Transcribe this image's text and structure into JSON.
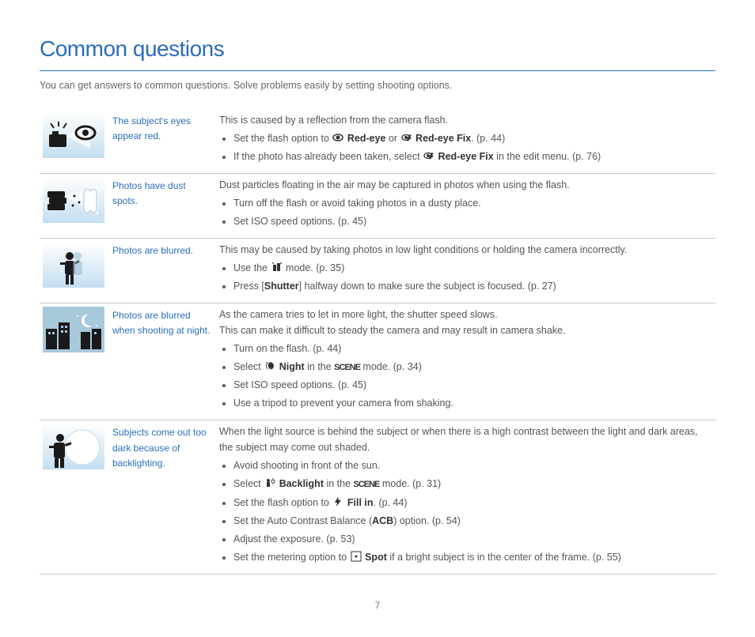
{
  "header": {
    "title": "Common questions",
    "intro": "You can get answers to common questions. Solve problems easily by setting shooting options."
  },
  "colors": {
    "accent": "#2a6ebb",
    "text": "#555555",
    "border": "#cccccc",
    "icon_bg_light": "#dfedf6",
    "icon_bg_grad_top": "#ffffff",
    "icon_bg_grad_bottom": "#c4def0",
    "icon_dark": "#1a1a1a"
  },
  "rows": [
    {
      "title": "The subject's eyes appear red.",
      "lead": "This is caused by a reflection from the camera flash.",
      "bullets": [
        {
          "pre": "Set the flash option to ",
          "icon": "redeye",
          "mid": " Red-eye",
          "post": " or ",
          "icon2": "redeyefix",
          "mid2": " Red-eye Fix",
          "tail": ". (p. 44)"
        },
        {
          "pre": "If the photo has already been taken, select ",
          "icon": "redeyefix",
          "mid": " Red-eye Fix",
          "post": " in the edit menu. (p. 76)"
        }
      ]
    },
    {
      "title": "Photos have dust spots.",
      "lead": "Dust particles floating in the air may be captured in photos when using the flash.",
      "bullets": [
        {
          "pre": "Turn off the flash or avoid taking photos in a dusty place."
        },
        {
          "pre": "Set ISO speed options. (p. 45)"
        }
      ]
    },
    {
      "title": "Photos are blurred.",
      "lead": "This may be caused by taking photos in low light conditions or holding the camera incorrectly.",
      "bullets": [
        {
          "pre": "Use the ",
          "icon": "dual",
          "mid": "",
          "post": " mode. (p. 35)"
        },
        {
          "pre": "Press [",
          "bold": "Shutter",
          "post": "] halfway down to make sure the subject is focused. (p. 27)"
        }
      ]
    },
    {
      "title": "Photos are blurred when shooting at night.",
      "lead": "As the camera tries to let in more light, the shutter speed slows.",
      "lead2": "This can make it difficult to steady the camera and may result in camera shake.",
      "bullets": [
        {
          "pre": "Turn on the flash. (p. 44)"
        },
        {
          "pre": "Select ",
          "icon": "night",
          "mid": " Night",
          "post": " in the ",
          "scene": true,
          "tail": " mode. (p. 34)"
        },
        {
          "pre": "Set ISO speed options. (p. 45)"
        },
        {
          "pre": "Use a tripod to prevent your camera from shaking."
        }
      ]
    },
    {
      "title": "Subjects come out too dark because of backlighting.",
      "lead": "When the light source is behind the subject or when there is a high contrast between the light and dark areas, the subject may come out shaded.",
      "bullets": [
        {
          "pre": "Avoid shooting in front of the sun."
        },
        {
          "pre": "Select ",
          "icon": "backlight",
          "mid": " Backlight",
          "post": " in the ",
          "scene": true,
          "tail": " mode. (p. 31)"
        },
        {
          "pre": "Set the flash option to ",
          "icon": "fillin",
          "mid": " Fill in",
          "post": ". (p. 44)"
        },
        {
          "pre": "Set the Auto Contrast Balance (",
          "bold": "ACB",
          "post": ") option. (p. 54)"
        },
        {
          "pre": "Adjust the exposure. (p. 53)"
        },
        {
          "pre": "Set the metering option to ",
          "icon": "spot",
          "mid": " Spot",
          "post": " if a bright subject is in the center of the frame. (p. 55)"
        }
      ]
    }
  ],
  "page_number": "7",
  "icon_svgs": {
    "row0": "camera-flash-eye",
    "row1": "dust-flash",
    "row2": "person-blur",
    "row3": "night-city",
    "row4": "backlight-person"
  }
}
